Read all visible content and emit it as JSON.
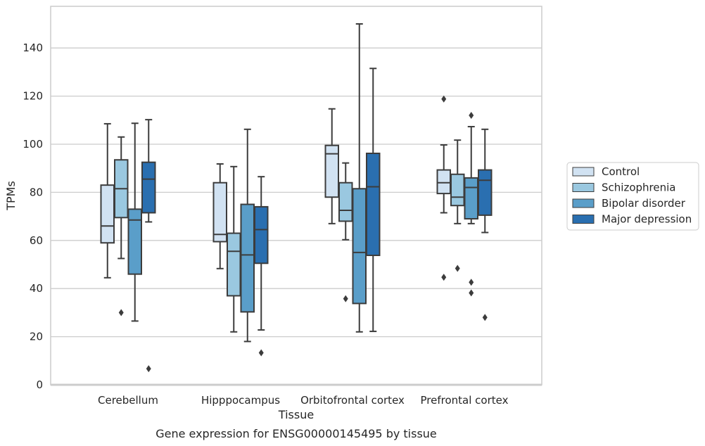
{
  "chart_data": {
    "type": "box",
    "title": "",
    "caption": "Gene expression for ENSG00000145495 by tissue",
    "xlabel": "Tissue",
    "ylabel": "TPMs",
    "ylim": [
      0,
      157
    ],
    "yticks": [
      0,
      20,
      40,
      60,
      80,
      100,
      120,
      140
    ],
    "grid": "horizontal",
    "legend_position": "right",
    "categories": [
      "Cerebellum",
      "Hipppocampus",
      "Orbitofrontal cortex",
      "Prefrontal cortex"
    ],
    "series": [
      {
        "name": "Control",
        "color": "#d1e2f2",
        "boxes": [
          {
            "whislo": 44.5,
            "q1": 59,
            "med": 66,
            "q3": 83,
            "whishi": 108.5,
            "fliers": []
          },
          {
            "whislo": 48.3,
            "q1": 59.5,
            "med": 62.5,
            "q3": 84,
            "whishi": 91.8,
            "fliers": []
          },
          {
            "whislo": 67,
            "q1": 78,
            "med": 96,
            "q3": 99.5,
            "whishi": 114.7,
            "fliers": []
          },
          {
            "whislo": 71.5,
            "q1": 79.5,
            "med": 84,
            "q3": 89.3,
            "whishi": 99.7,
            "fliers": [
              118.8,
              44.7
            ]
          }
        ]
      },
      {
        "name": "Schizophrenia",
        "color": "#9ac8e0",
        "boxes": [
          {
            "whislo": 52.5,
            "q1": 69.5,
            "med": 81.5,
            "q3": 93.5,
            "whishi": 103,
            "fliers": [
              30
            ]
          },
          {
            "whislo": 22,
            "q1": 37,
            "med": 55.5,
            "q3": 63,
            "whishi": 90.7,
            "fliers": []
          },
          {
            "whislo": 60.3,
            "q1": 68,
            "med": 72.5,
            "q3": 84,
            "whishi": 92.2,
            "fliers": [
              35.8
            ]
          },
          {
            "whislo": 67,
            "q1": 74.5,
            "med": 78,
            "q3": 87.5,
            "whishi": 101.7,
            "fliers": [
              48.4
            ]
          }
        ]
      },
      {
        "name": "Bipolar disorder",
        "color": "#5a9ec9",
        "boxes": [
          {
            "whislo": 26.5,
            "q1": 46,
            "med": 68.5,
            "q3": 73,
            "whishi": 108.7,
            "fliers": []
          },
          {
            "whislo": 18,
            "q1": 30.3,
            "med": 54,
            "q3": 75,
            "whishi": 106.2,
            "fliers": []
          },
          {
            "whislo": 22,
            "q1": 33.8,
            "med": 55,
            "q3": 81.5,
            "whishi": 150,
            "fliers": []
          },
          {
            "whislo": 67,
            "q1": 69,
            "med": 82,
            "q3": 86,
            "whishi": 107.3,
            "fliers": [
              112,
              42.6,
              38.2
            ]
          }
        ]
      },
      {
        "name": "Major depression",
        "color": "#2a6fb0",
        "boxes": [
          {
            "whislo": 67.7,
            "q1": 71.5,
            "med": 85.5,
            "q3": 92.5,
            "whishi": 110.2,
            "fliers": [
              6.7
            ]
          },
          {
            "whislo": 22.8,
            "q1": 50.5,
            "med": 64.5,
            "q3": 74,
            "whishi": 86.5,
            "fliers": [
              13.3
            ]
          },
          {
            "whislo": 22.2,
            "q1": 53.8,
            "med": 82.3,
            "q3": 96.2,
            "whishi": 131.5,
            "fliers": []
          },
          {
            "whislo": 63.3,
            "q1": 70.5,
            "med": 85,
            "q3": 89.3,
            "whishi": 106.2,
            "fliers": [
              28
            ]
          }
        ]
      }
    ]
  }
}
